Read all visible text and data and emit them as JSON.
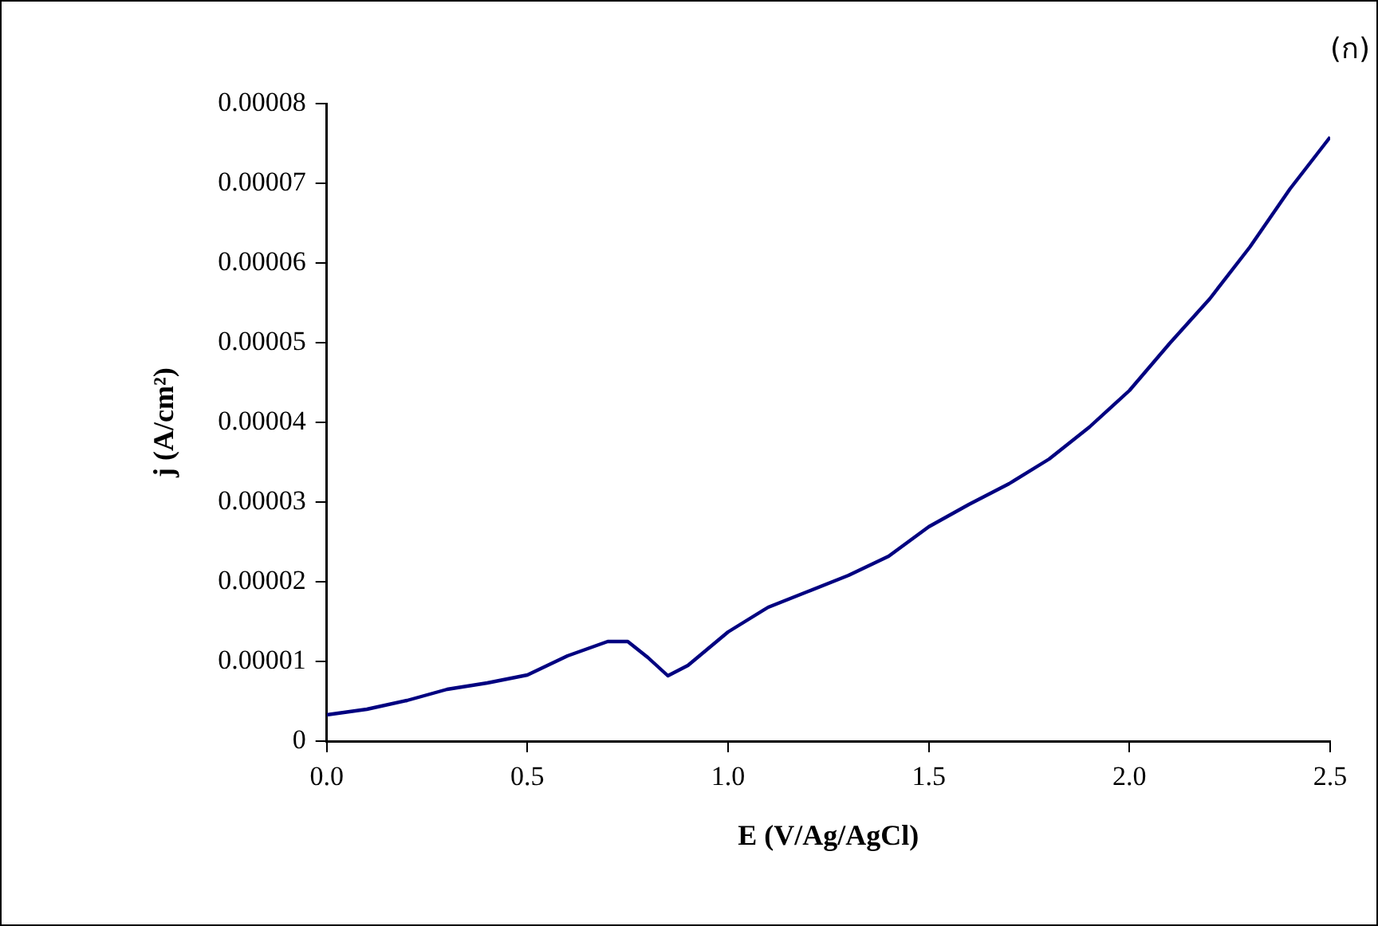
{
  "chart_data": {
    "type": "line",
    "xlabel": "E (V/Ag/AgCl)",
    "ylabel": "j (A/cm²)",
    "annotations": [
      "(ก)"
    ],
    "x": [
      0,
      0.1,
      0.2,
      0.3,
      0.4,
      0.5,
      0.6,
      0.7,
      0.75,
      0.8,
      0.85,
      0.9,
      1.0,
      1.1,
      1.2,
      1.3,
      1.4,
      1.5,
      1.6,
      1.7,
      1.8,
      1.9,
      2.0,
      2.1,
      2.2,
      2.3,
      2.4,
      2.5
    ],
    "series": [
      {
        "color": "#000080",
        "values": [
          3.3e-06,
          4e-06,
          5.1e-06,
          6.5e-06,
          7.3e-06,
          8.3e-06,
          1.07e-05,
          1.25e-05,
          1.25e-05,
          1.05e-05,
          8.2e-06,
          9.5e-06,
          1.37e-05,
          1.68e-05,
          1.88e-05,
          2.08e-05,
          2.32e-05,
          2.69e-05,
          2.97e-05,
          3.23e-05,
          3.54e-05,
          3.94e-05,
          4.4e-05,
          4.99e-05,
          5.55e-05,
          6.2e-05,
          6.93e-05,
          7.58e-05
        ]
      }
    ],
    "xlim": [
      0,
      2.5
    ],
    "xticks": [
      {
        "value": 0,
        "label": "0.0"
      },
      {
        "value": 0.5,
        "label": "0.5"
      },
      {
        "value": 1,
        "label": "1.0"
      },
      {
        "value": 1.5,
        "label": "1.5"
      },
      {
        "value": 2,
        "label": "2.0"
      },
      {
        "value": 2.5,
        "label": "2.5"
      }
    ],
    "ylim": [
      0,
      8e-05
    ],
    "yticks": [
      0,
      {
        "value": 1e-05,
        "label": "0.00001"
      },
      {
        "value": 2e-05,
        "label": "0.00002"
      },
      {
        "value": 3e-05,
        "label": "0.00003"
      },
      {
        "value": 4e-05,
        "label": "0.00004"
      },
      {
        "value": 5e-05,
        "label": "0.00005"
      },
      {
        "value": 6e-05,
        "label": "0.00006"
      },
      {
        "value": 7e-05,
        "label": "0.00007"
      },
      {
        "value": 8e-05,
        "label": "0.00008"
      }
    ],
    "grid": false,
    "legend": false,
    "marker": "none",
    "line_style": "solid"
  }
}
